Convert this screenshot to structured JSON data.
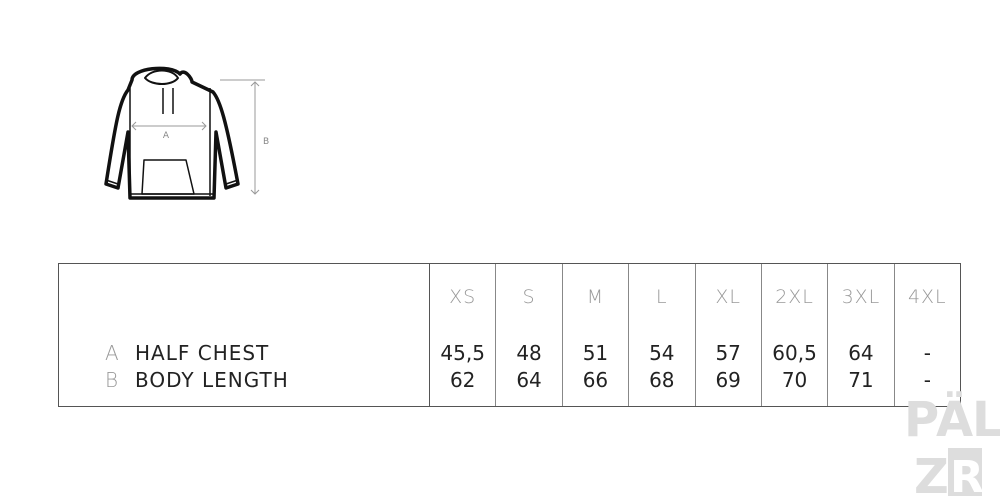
{
  "diagram": {
    "label_a": "A",
    "label_b": "B"
  },
  "table": {
    "sizes": [
      "XS",
      "S",
      "M",
      "L",
      "XL",
      "2XL",
      "3XL",
      "4XL"
    ],
    "rows": [
      {
        "key": "A",
        "label": "HALF CHEST",
        "values": [
          "45,5",
          "48",
          "51",
          "54",
          "57",
          "60,5",
          "64",
          "-"
        ]
      },
      {
        "key": "B",
        "label": "BODY LENGTH",
        "values": [
          "62",
          "64",
          "66",
          "68",
          "69",
          "70",
          "71",
          "-"
        ]
      }
    ]
  },
  "logo": {
    "text": "PÄLZR"
  }
}
